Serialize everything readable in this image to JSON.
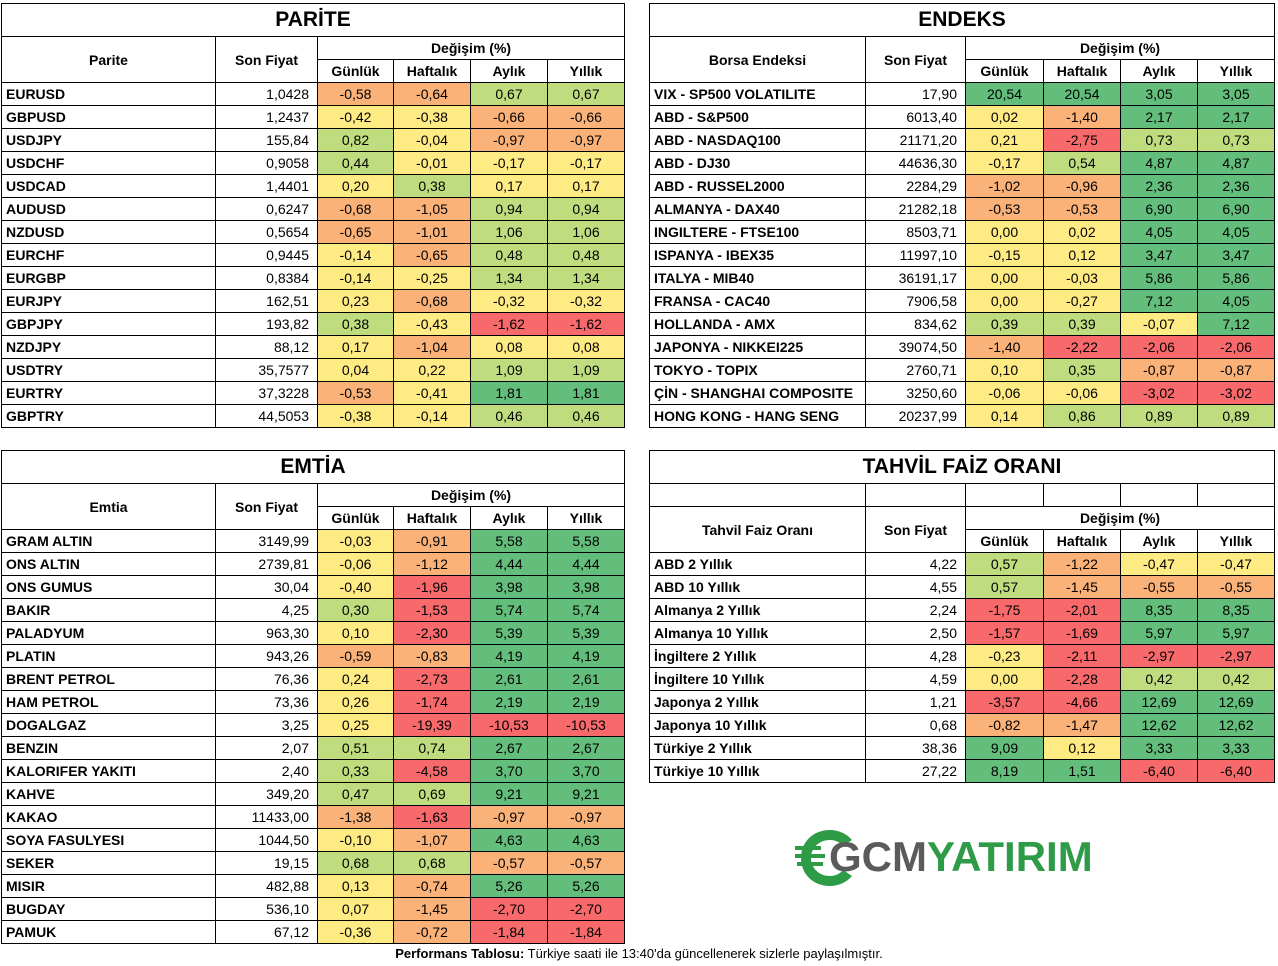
{
  "parite": {
    "title": "PARİTE",
    "headers": {
      "name": "Parite",
      "price": "Son Fiyat",
      "change": "Değişim (%)",
      "d": "Günlük",
      "w": "Haftalık",
      "m": "Aylık",
      "y": "Yıllık"
    },
    "rows": [
      [
        "EURUSD",
        "1,0428",
        "-0,58",
        "-0,64",
        "0,67",
        "0,67"
      ],
      [
        "GBPUSD",
        "1,2437",
        "-0,42",
        "-0,38",
        "-0,66",
        "-0,66"
      ],
      [
        "USDJPY",
        "155,84",
        "0,82",
        "-0,04",
        "-0,97",
        "-0,97"
      ],
      [
        "USDCHF",
        "0,9058",
        "0,44",
        "-0,01",
        "-0,17",
        "-0,17"
      ],
      [
        "USDCAD",
        "1,4401",
        "0,20",
        "0,38",
        "0,17",
        "0,17"
      ],
      [
        "AUDUSD",
        "0,6247",
        "-0,68",
        "-1,05",
        "0,94",
        "0,94"
      ],
      [
        "NZDUSD",
        "0,5654",
        "-0,65",
        "-1,01",
        "1,06",
        "1,06"
      ],
      [
        "EURCHF",
        "0,9445",
        "-0,14",
        "-0,65",
        "0,48",
        "0,48"
      ],
      [
        "EURGBP",
        "0,8384",
        "-0,14",
        "-0,25",
        "1,34",
        "1,34"
      ],
      [
        "EURJPY",
        "162,51",
        "0,23",
        "-0,68",
        "-0,32",
        "-0,32"
      ],
      [
        "GBPJPY",
        "193,82",
        "0,38",
        "-0,43",
        "-1,62",
        "-1,62"
      ],
      [
        "NZDJPY",
        "88,12",
        "0,17",
        "-1,04",
        "0,08",
        "0,08"
      ],
      [
        "USDTRY",
        "35,7577",
        "0,04",
        "0,22",
        "1,09",
        "1,09"
      ],
      [
        "EURTRY",
        "37,3228",
        "-0,53",
        "-0,41",
        "1,81",
        "1,81"
      ],
      [
        "GBPTRY",
        "44,5053",
        "-0,38",
        "-0,14",
        "0,46",
        "0,46"
      ]
    ]
  },
  "endeks": {
    "title": "ENDEKS",
    "headers": {
      "name": "Borsa Endeksi",
      "price": "Son Fiyat",
      "change": "Değişim (%)",
      "d": "Günlük",
      "w": "Haftalık",
      "m": "Aylık",
      "y": "Yıllık"
    },
    "rows": [
      [
        "VIX  - SP500 VOLATILITE",
        "17,90",
        "20,54",
        "20,54",
        "3,05",
        "3,05"
      ],
      [
        "ABD - S&P500",
        "6013,40",
        "0,02",
        "-1,40",
        "2,17",
        "2,17"
      ],
      [
        "ABD - NASDAQ100",
        "21171,20",
        "0,21",
        "-2,75",
        "0,73",
        "0,73"
      ],
      [
        "ABD - DJ30",
        "44636,30",
        "-0,17",
        "0,54",
        "4,87",
        "4,87"
      ],
      [
        "ABD - RUSSEL2000",
        "2284,29",
        "-1,02",
        "-0,96",
        "2,36",
        "2,36"
      ],
      [
        "ALMANYA - DAX40",
        "21282,18",
        "-0,53",
        "-0,53",
        "6,90",
        "6,90"
      ],
      [
        "INGILTERE - FTSE100",
        "8503,71",
        "0,00",
        "0,02",
        "4,05",
        "4,05"
      ],
      [
        "ISPANYA - IBEX35",
        "11997,10",
        "-0,15",
        "0,12",
        "3,47",
        "3,47"
      ],
      [
        "ITALYA - MIB40",
        "36191,17",
        "0,00",
        "-0,03",
        "5,86",
        "5,86"
      ],
      [
        "FRANSA - CAC40",
        "7906,58",
        "0,00",
        "-0,27",
        "7,12",
        "4,05"
      ],
      [
        "HOLLANDA - AMX",
        "834,62",
        "0,39",
        "0,39",
        "-0,07",
        "7,12"
      ],
      [
        "JAPONYA - NIKKEI225",
        "39074,50",
        "-1,40",
        "-2,22",
        "-2,06",
        "-2,06"
      ],
      [
        "TOKYO - TOPIX",
        "2760,71",
        "0,10",
        "0,35",
        "-0,87",
        "-0,87"
      ],
      [
        "ÇİN - SHANGHAI COMPOSITE",
        "3250,60",
        "-0,06",
        "-0,06",
        "-3,02",
        "-3,02"
      ],
      [
        "HONG KONG - HANG SENG",
        "20237,99",
        "0,14",
        "0,86",
        "0,89",
        "0,89"
      ]
    ]
  },
  "emtia": {
    "title": "EMTİA",
    "headers": {
      "name": "Emtia",
      "price": "Son Fiyat",
      "change": "Değişim (%)",
      "d": "Günlük",
      "w": "Haftalık",
      "m": "Aylık",
      "y": "Yıllık"
    },
    "rows": [
      [
        "GRAM ALTIN",
        "3149,99",
        "-0,03",
        "-0,91",
        "5,58",
        "5,58"
      ],
      [
        "ONS ALTIN",
        "2739,81",
        "-0,06",
        "-1,12",
        "4,44",
        "4,44"
      ],
      [
        "ONS GUMUS",
        "30,04",
        "-0,40",
        "-1,96",
        "3,98",
        "3,98"
      ],
      [
        "BAKIR",
        "4,25",
        "0,30",
        "-1,53",
        "5,74",
        "5,74"
      ],
      [
        "PALADYUM",
        "963,30",
        "0,10",
        "-2,30",
        "5,39",
        "5,39"
      ],
      [
        "PLATIN",
        "943,26",
        "-0,59",
        "-0,83",
        "4,19",
        "4,19"
      ],
      [
        "BRENT PETROL",
        "76,36",
        "0,24",
        "-2,73",
        "2,61",
        "2,61"
      ],
      [
        "HAM PETROL",
        "73,36",
        "0,26",
        "-1,74",
        "2,19",
        "2,19"
      ],
      [
        "DOGALGAZ",
        "3,25",
        "0,25",
        "-19,39",
        "-10,53",
        "-10,53"
      ],
      [
        "BENZIN",
        "2,07",
        "0,51",
        "0,74",
        "2,67",
        "2,67"
      ],
      [
        "KALORIFER YAKITI",
        "2,40",
        "0,33",
        "-4,58",
        "3,70",
        "3,70"
      ],
      [
        "KAHVE",
        "349,20",
        "0,47",
        "0,69",
        "9,21",
        "9,21"
      ],
      [
        "KAKAO",
        "11433,00",
        "-1,38",
        "-1,63",
        "-0,97",
        "-0,97"
      ],
      [
        "SOYA FASULYESI",
        "1044,50",
        "-0,10",
        "-1,07",
        "4,63",
        "4,63"
      ],
      [
        "SEKER",
        "19,15",
        "0,68",
        "0,68",
        "-0,57",
        "-0,57"
      ],
      [
        "MISIR",
        "482,88",
        "0,13",
        "-0,74",
        "5,26",
        "5,26"
      ],
      [
        "BUGDAY",
        "536,10",
        "0,07",
        "-1,45",
        "-2,70",
        "-2,70"
      ],
      [
        "PAMUK",
        "67,12",
        "-0,36",
        "-0,72",
        "-1,84",
        "-1,84"
      ]
    ]
  },
  "tahvil": {
    "title": "TAHVİL FAİZ ORANI",
    "headers": {
      "name": "Tahvil Faiz Oranı",
      "price": "Son Fiyat",
      "change": "Değişim (%)",
      "d": "Günlük",
      "w": "Haftalık",
      "m": "Aylık",
      "y": "Yıllık"
    },
    "rows": [
      [
        "ABD 2 Yıllık",
        "4,22",
        "0,57",
        "-1,22",
        "-0,47",
        "-0,47"
      ],
      [
        "ABD 10 Yıllık",
        "4,55",
        "0,57",
        "-1,45",
        "-0,55",
        "-0,55"
      ],
      [
        "Almanya 2 Yıllık",
        "2,24",
        "-1,75",
        "-2,01",
        "8,35",
        "8,35"
      ],
      [
        "Almanya 10 Yıllık",
        "2,50",
        "-1,57",
        "-1,69",
        "5,97",
        "5,97"
      ],
      [
        "İngiltere 2 Yıllık",
        "4,28",
        "-0,23",
        "-2,11",
        "-2,97",
        "-2,97"
      ],
      [
        "İngiltere 10 Yıllık",
        "4,59",
        "0,00",
        "-2,28",
        "0,42",
        "0,42"
      ],
      [
        "Japonya 2 Yıllık",
        "1,21",
        "-3,57",
        "-4,66",
        "12,69",
        "12,69"
      ],
      [
        "Japonya 10 Yıllık",
        "0,68",
        "-0,82",
        "-1,47",
        "12,62",
        "12,62"
      ],
      [
        "Türkiye 2 Yıllık",
        "38,36",
        "9,09",
        "0,12",
        "3,33",
        "3,33"
      ],
      [
        "Türkiye 10 Yıllık",
        "27,22",
        "8,19",
        "1,51",
        "-6,40",
        "-6,40"
      ]
    ]
  },
  "logo": {
    "text_a": "GCM",
    "text_b": "YATIRIM"
  },
  "footer": {
    "bold": "Performans Tablosu:",
    "text": " Türkiye saati ile 13:40'da güncellenerek sizlerle paylaşılmıştır."
  },
  "colors": {
    "red": "#f8696b",
    "orange": "#fbb279",
    "yellow": "#ffeb84",
    "light_green": "#bfdc7f",
    "green": "#63be7b"
  }
}
